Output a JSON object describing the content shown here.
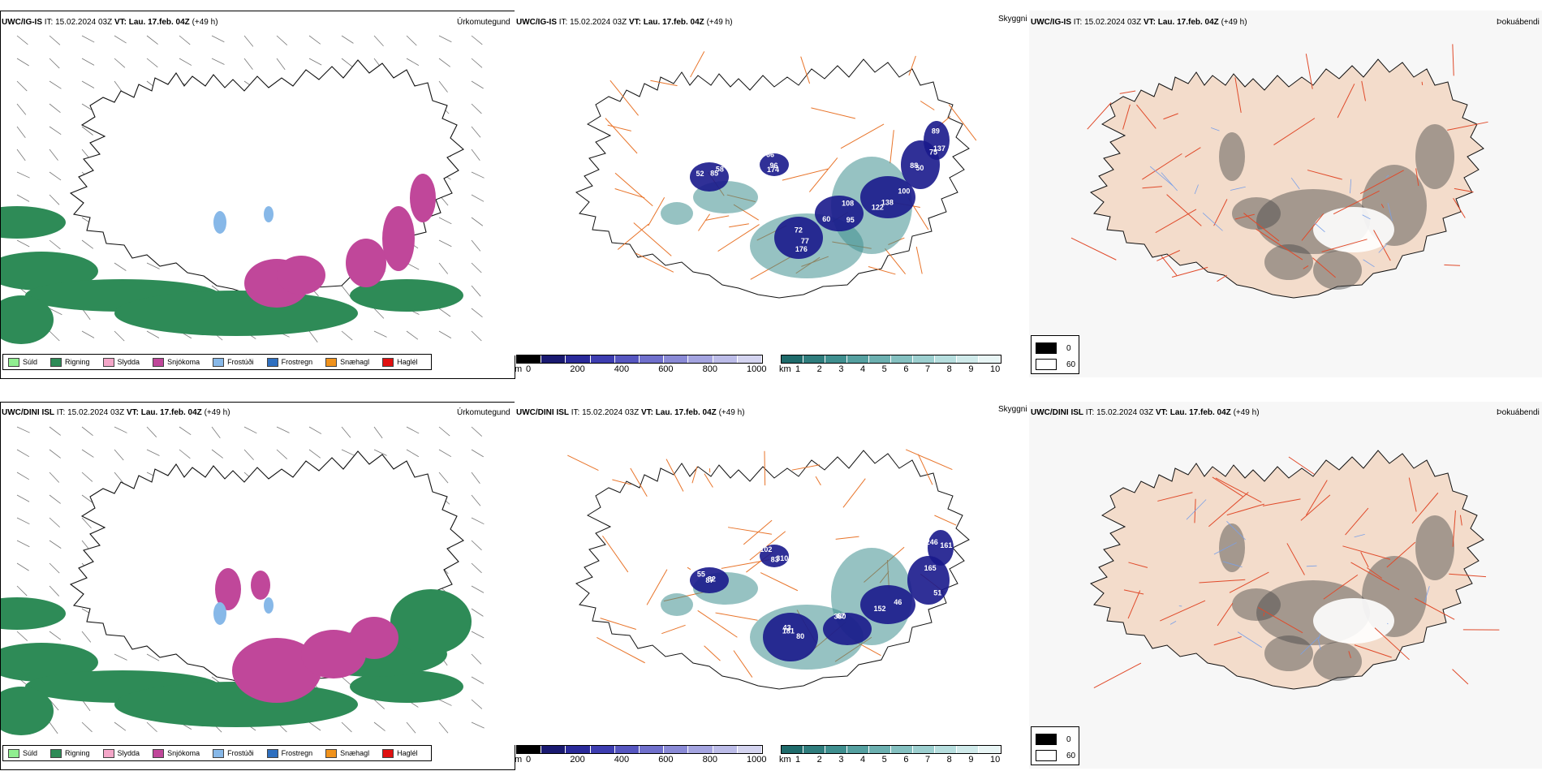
{
  "rows": [
    {
      "model": "UWC/IG-IS",
      "it_label": "IT:",
      "it_value": "15.02.2024 03Z",
      "vt_label": "VT:",
      "vt_value": "Lau. 17.feb. 04Z",
      "lead": "(+49 h)",
      "precip_numbers": [
        "52",
        "66",
        "72",
        "108",
        "138",
        "75",
        "89",
        "58",
        "174",
        "176",
        "95",
        "122",
        "50",
        "137",
        "85",
        "96",
        "77",
        "60",
        "100",
        "88"
      ],
      "roads_numbers": []
    },
    {
      "model": "UWC/DINI ISL",
      "it_label": "IT:",
      "it_value": "15.02.2024 03Z",
      "vt_label": "VT:",
      "vt_value": "Lau. 17.feb. 04Z",
      "lead": "(+49 h)",
      "precip_numbers": [
        "55",
        "102",
        "181",
        "380",
        "152",
        "165",
        "246",
        "82",
        "310",
        "80",
        "67",
        "46",
        "51",
        "161",
        "87",
        "83",
        "43"
      ],
      "roads_numbers": []
    }
  ],
  "panel_titles": {
    "precip_type": "Úrkomutegund",
    "visibility": "Skyggni",
    "fog": "Þokuábendi"
  },
  "precip_legend": [
    {
      "label": "Súld",
      "color": "#90ee90"
    },
    {
      "label": "Rigning",
      "color": "#2e8b57"
    },
    {
      "label": "Slydda",
      "color": "#f4a6c8"
    },
    {
      "label": "Snjókoma",
      "color": "#c0479a"
    },
    {
      "label": "Frostúði",
      "color": "#87b8e8"
    },
    {
      "label": "Frostregn",
      "color": "#2e6fbf"
    },
    {
      "label": "Snæhagl",
      "color": "#f0921c"
    },
    {
      "label": "Haglél",
      "color": "#e01010"
    }
  ],
  "ceiling_bar": {
    "unit": "m",
    "ticks": [
      "0",
      "200",
      "400",
      "600",
      "800",
      "1000"
    ],
    "colors": [
      "#000000",
      "#191970",
      "#2a2a9a",
      "#3d3db0",
      "#5656c0",
      "#7070cc",
      "#8a8ad6",
      "#a4a4e0",
      "#bcbce8",
      "#d4d4f0"
    ]
  },
  "visibility_bar": {
    "unit": "km",
    "ticks": [
      "1",
      "2",
      "3",
      "4",
      "5",
      "6",
      "7",
      "8",
      "9",
      "10"
    ],
    "colors": [
      "#1f6b6b",
      "#2f7d7d",
      "#3f8f8f",
      "#55a0a0",
      "#6cb0b0",
      "#84c0c0",
      "#9ccfcf",
      "#b6dede",
      "#cfeaea",
      "#e8f5f5"
    ]
  },
  "fog_legend": [
    {
      "label": "0",
      "color": "#000000"
    },
    {
      "label": "60",
      "color": "#ffffff"
    }
  ],
  "colors": {
    "land_fog": "#f3dccb",
    "road": "#e8742a",
    "road_red": "#e04a2a",
    "rain": "#2e8b57",
    "snow": "#c0479a",
    "deep_blue": "#1a1a8c",
    "teal": "#3f8f8f"
  }
}
